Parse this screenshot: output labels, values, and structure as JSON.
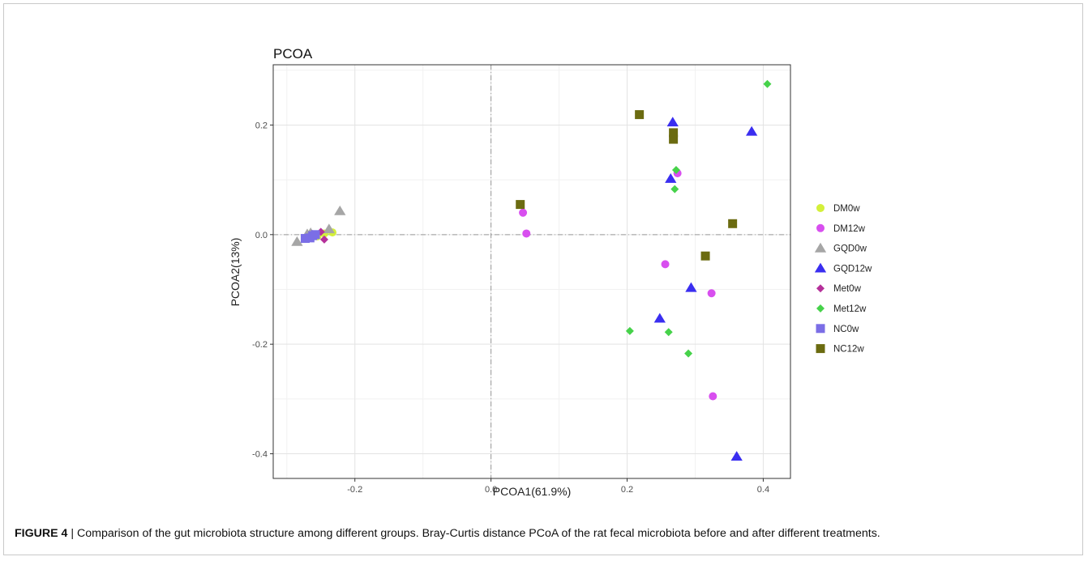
{
  "chart_data": {
    "type": "scatter",
    "title": "PCOA",
    "xlabel": "PCOA1(61.9%)",
    "ylabel": "PCOA2(13%)",
    "xlim": [
      -0.32,
      0.44
    ],
    "ylim": [
      -0.445,
      0.31
    ],
    "xticks": [
      -0.2,
      0.0,
      0.2,
      0.4
    ],
    "xtick_labels": [
      "-0.2",
      "0.0",
      "0.2",
      "0.4"
    ],
    "yticks": [
      -0.4,
      -0.2,
      0.0,
      0.2
    ],
    "ytick_labels": [
      "-0.4",
      "-0.2",
      "0.0",
      "0.2"
    ],
    "grid": true,
    "reference_lines": {
      "x": 0,
      "y": 0
    },
    "legend_position": "right",
    "series": [
      {
        "name": "DM0w",
        "color": "#d4f03a",
        "marker": "circle",
        "points": [
          [
            -0.233,
            0.004
          ],
          [
            -0.245,
            0.002
          ],
          [
            -0.255,
            -0.003
          ]
        ]
      },
      {
        "name": "DM12w",
        "color": "#d84fef",
        "marker": "circle",
        "points": [
          [
            0.047,
            0.04
          ],
          [
            0.052,
            0.002
          ],
          [
            0.274,
            0.112
          ],
          [
            0.256,
            -0.054
          ],
          [
            0.324,
            -0.107
          ],
          [
            0.326,
            -0.295
          ]
        ]
      },
      {
        "name": "GQD0w",
        "color": "#a6a6a6",
        "marker": "triangle",
        "points": [
          [
            -0.222,
            0.043
          ],
          [
            -0.285,
            -0.013
          ],
          [
            -0.238,
            0.01
          ],
          [
            -0.27,
            0.001
          ],
          [
            -0.265,
            0.003
          ]
        ]
      },
      {
        "name": "GQD12w",
        "color": "#3a2ef0",
        "marker": "triangle",
        "points": [
          [
            0.267,
            0.205
          ],
          [
            0.383,
            0.188
          ],
          [
            0.264,
            0.102
          ],
          [
            0.294,
            -0.097
          ],
          [
            0.248,
            -0.153
          ],
          [
            0.361,
            -0.405
          ]
        ]
      },
      {
        "name": "Met0w",
        "color": "#b5309a",
        "marker": "diamond",
        "points": [
          [
            -0.25,
            0.005
          ],
          [
            -0.245,
            -0.009
          ],
          [
            -0.262,
            0.001
          ]
        ]
      },
      {
        "name": "Met12w",
        "color": "#46d24a",
        "marker": "diamond",
        "points": [
          [
            0.406,
            0.275
          ],
          [
            0.272,
            0.118
          ],
          [
            0.27,
            0.083
          ],
          [
            0.204,
            -0.176
          ],
          [
            0.261,
            -0.178
          ],
          [
            0.29,
            -0.217
          ]
        ]
      },
      {
        "name": "NC0w",
        "color": "#7b6ee6",
        "marker": "square",
        "points": [
          [
            -0.273,
            -0.007
          ],
          [
            -0.266,
            -0.006
          ],
          [
            -0.262,
            -0.002
          ],
          [
            -0.258,
            0.0
          ]
        ]
      },
      {
        "name": "NC12w",
        "color": "#6b6b10",
        "marker": "square",
        "points": [
          [
            0.043,
            0.055
          ],
          [
            0.218,
            0.219
          ],
          [
            0.268,
            0.186
          ],
          [
            0.268,
            0.174
          ],
          [
            0.355,
            0.02
          ],
          [
            0.315,
            -0.039
          ]
        ]
      }
    ]
  },
  "caption": {
    "label": "FIGURE 4",
    "separator": " | ",
    "text": "Comparison of the gut microbiota structure among different groups. Bray-Curtis distance PCoA of the rat fecal microbiota before and after different treatments."
  }
}
